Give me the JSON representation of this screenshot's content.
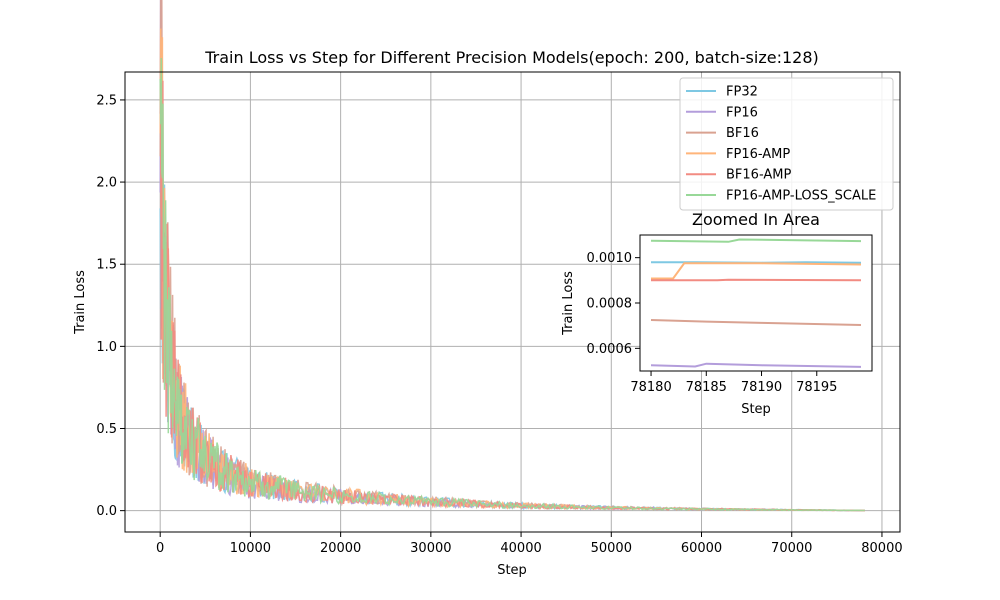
{
  "chart_data": {
    "type": "line",
    "title": "Train Loss vs Step for Different Precision Models(epoch: 200, batch-size:128)",
    "xlabel": "Step",
    "ylabel": "Train Loss",
    "xlim": [
      -3900,
      82000
    ],
    "ylim": [
      -0.13,
      2.67
    ],
    "xticks": [
      0,
      10000,
      20000,
      30000,
      40000,
      50000,
      60000,
      70000,
      80000
    ],
    "xtick_labels": [
      "0",
      "10000",
      "20000",
      "30000",
      "40000",
      "50000",
      "60000",
      "70000",
      "80000"
    ],
    "yticks": [
      0.0,
      0.5,
      1.0,
      1.5,
      2.0,
      2.5
    ],
    "ytick_labels": [
      "0.0",
      "0.5",
      "1.0",
      "1.5",
      "2.0",
      "2.5"
    ],
    "grid": true,
    "legend_position": "top-right",
    "series": [
      {
        "name": "FP32",
        "color": "#7ec8e3",
        "x": [
          0,
          300,
          600,
          1000,
          1500,
          2000,
          3000,
          4000,
          5000,
          7000,
          10000,
          15000,
          20000,
          25000,
          30000,
          35000,
          40000,
          50000,
          60000,
          70000,
          78199
        ],
        "y": [
          2.45,
          1.7,
          1.25,
          0.95,
          0.75,
          0.6,
          0.46,
          0.38,
          0.32,
          0.24,
          0.17,
          0.12,
          0.09,
          0.07,
          0.055,
          0.04,
          0.03,
          0.018,
          0.01,
          0.005,
          0.001
        ]
      },
      {
        "name": "FP16",
        "color": "#b39ddb",
        "x": [
          0,
          300,
          600,
          1000,
          1500,
          2000,
          3000,
          4000,
          5000,
          7000,
          10000,
          15000,
          20000,
          25000,
          30000,
          35000,
          40000,
          50000,
          60000,
          70000,
          78199
        ],
        "y": [
          2.4,
          1.65,
          1.2,
          0.92,
          0.72,
          0.58,
          0.45,
          0.37,
          0.31,
          0.23,
          0.16,
          0.11,
          0.085,
          0.065,
          0.05,
          0.038,
          0.028,
          0.016,
          0.009,
          0.004,
          0.0005
        ]
      },
      {
        "name": "BF16",
        "color": "#d9a291",
        "x": [
          0,
          300,
          600,
          1000,
          1500,
          2000,
          3000,
          4000,
          5000,
          7000,
          10000,
          15000,
          20000,
          25000,
          30000,
          35000,
          40000,
          50000,
          60000,
          70000,
          78199
        ],
        "y": [
          2.5,
          1.8,
          1.35,
          1.02,
          0.8,
          0.64,
          0.49,
          0.4,
          0.33,
          0.25,
          0.18,
          0.125,
          0.095,
          0.072,
          0.056,
          0.042,
          0.031,
          0.018,
          0.01,
          0.005,
          0.0007
        ]
      },
      {
        "name": "FP16-AMP",
        "color": "#ffb57a",
        "x": [
          0,
          300,
          600,
          1000,
          1500,
          2000,
          3000,
          4000,
          5000,
          7000,
          10000,
          15000,
          20000,
          25000,
          30000,
          35000,
          40000,
          50000,
          60000,
          70000,
          78199
        ],
        "y": [
          2.5,
          1.78,
          1.32,
          1.0,
          0.78,
          0.62,
          0.48,
          0.39,
          0.33,
          0.245,
          0.175,
          0.12,
          0.092,
          0.07,
          0.054,
          0.041,
          0.03,
          0.017,
          0.009,
          0.004,
          0.001
        ]
      },
      {
        "name": "BF16-AMP",
        "color": "#f28b82",
        "x": [
          0,
          300,
          600,
          1000,
          1500,
          2000,
          3000,
          4000,
          5000,
          7000,
          10000,
          15000,
          20000,
          25000,
          30000,
          35000,
          40000,
          50000,
          60000,
          70000,
          78199
        ],
        "y": [
          2.48,
          1.75,
          1.3,
          0.98,
          0.76,
          0.61,
          0.47,
          0.385,
          0.325,
          0.24,
          0.172,
          0.118,
          0.09,
          0.069,
          0.053,
          0.04,
          0.029,
          0.017,
          0.009,
          0.004,
          0.0009
        ]
      },
      {
        "name": "FP16-AMP-LOSS_SCALE",
        "color": "#98d898",
        "x": [
          0,
          300,
          600,
          1000,
          1500,
          2000,
          3000,
          4000,
          5000,
          7000,
          10000,
          15000,
          20000,
          25000,
          30000,
          35000,
          40000,
          50000,
          60000,
          70000,
          78199
        ],
        "y": [
          2.55,
          1.72,
          1.22,
          0.93,
          0.74,
          0.6,
          0.47,
          0.38,
          0.32,
          0.25,
          0.17,
          0.12,
          0.09,
          0.07,
          0.054,
          0.041,
          0.03,
          0.017,
          0.009,
          0.004,
          0.0011
        ]
      }
    ],
    "inset": {
      "title": "Zoomed In Area",
      "xlabel": "Step",
      "ylabel": "Train Loss",
      "xlim": [
        78179,
        78200
      ],
      "ylim": [
        0.0005,
        0.0011
      ],
      "xticks": [
        78180,
        78185,
        78190,
        78195
      ],
      "xtick_labels": [
        "78180",
        "78185",
        "78190",
        "78195"
      ],
      "yticks": [
        0.0006,
        0.0008,
        0.001
      ],
      "ytick_labels": [
        "0.0006",
        "0.0008",
        "0.0010"
      ],
      "series": [
        {
          "name": "FP32",
          "x": [
            78180,
            78184,
            78190,
            78194,
            78199
          ],
          "y": [
            0.00098,
            0.00098,
            0.000978,
            0.00098,
            0.000978
          ]
        },
        {
          "name": "FP16",
          "x": [
            78180,
            78184,
            78185,
            78190,
            78199
          ],
          "y": [
            0.000525,
            0.00052,
            0.000532,
            0.000525,
            0.000518
          ]
        },
        {
          "name": "BF16",
          "x": [
            78180,
            78185,
            78190,
            78199
          ],
          "y": [
            0.000725,
            0.000718,
            0.000712,
            0.000703
          ]
        },
        {
          "name": "FP16-AMP",
          "x": [
            78180,
            78182,
            78183,
            78190,
            78199
          ],
          "y": [
            0.000908,
            0.000908,
            0.000975,
            0.000975,
            0.00097
          ]
        },
        {
          "name": "BF16-AMP",
          "x": [
            78180,
            78186,
            78187,
            78199
          ],
          "y": [
            0.0009,
            0.0009,
            0.000903,
            0.0009
          ]
        },
        {
          "name": "FP16-AMP-LOSS_SCALE",
          "x": [
            78180,
            78187,
            78188,
            78199
          ],
          "y": [
            0.001075,
            0.00107,
            0.00108,
            0.001073
          ]
        }
      ]
    }
  }
}
